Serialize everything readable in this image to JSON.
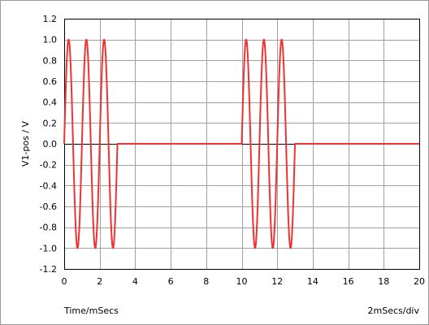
{
  "chart_data": {
    "type": "line",
    "xlabel": "Time/mSecs",
    "x_scale_label": "2mSecs/div",
    "ylabel": "V1-pos / V",
    "xlim": [
      0,
      20
    ],
    "ylim": [
      -1.2,
      1.2
    ],
    "x_ticks": [
      0,
      2,
      4,
      6,
      8,
      10,
      12,
      14,
      16,
      18,
      20
    ],
    "x_tick_labels": [
      "0",
      "2",
      "4",
      "6",
      "8",
      "10",
      "12",
      "14",
      "16",
      "18",
      "20"
    ],
    "y_ticks": [
      1.2,
      1.0,
      0.8,
      0.6,
      0.4,
      0.2,
      0.0,
      -0.2,
      -0.4,
      -0.6,
      -0.8,
      -1.0,
      -1.2
    ],
    "y_tick_labels": [
      "1.2",
      "1.0",
      "0.8",
      "0.6",
      "0.4",
      "0.2",
      "0.0",
      "-0.2",
      "-0.4",
      "-0.6",
      "-0.8",
      "-1.0",
      "-1.2"
    ],
    "grid": true,
    "legend": false,
    "series": [
      {
        "color": "#ee3333",
        "segments": [
          {
            "kind": "sine",
            "x_start": 0,
            "x_end": 3,
            "period": 1,
            "amplitude": 1
          },
          {
            "kind": "flat",
            "x_start": 3,
            "x_end": 10,
            "value": 0
          },
          {
            "kind": "sine",
            "x_start": 10,
            "x_end": 13,
            "period": 1,
            "amplitude": 1
          },
          {
            "kind": "flat",
            "x_start": 13,
            "x_end": 20,
            "value": 0
          }
        ]
      }
    ]
  }
}
